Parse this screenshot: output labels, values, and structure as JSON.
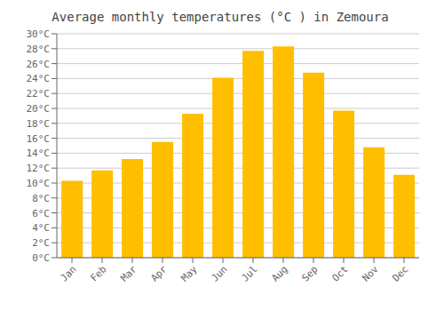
{
  "chart_data": {
    "type": "bar",
    "title": "Average monthly temperatures (°C ) in Zemoura",
    "categories": [
      "Jan",
      "Feb",
      "Mar",
      "Apr",
      "May",
      "Jun",
      "Jul",
      "Aug",
      "Sep",
      "Oct",
      "Nov",
      "Dec"
    ],
    "values": [
      10.3,
      11.7,
      13.2,
      15.5,
      19.3,
      24.1,
      27.7,
      28.3,
      24.8,
      19.7,
      14.8,
      11.1
    ],
    "color": "#FFBE00",
    "ylim": [
      0,
      30
    ],
    "yticks": [
      {
        "value": 0,
        "label": "0°C"
      },
      {
        "value": 2,
        "label": "2°C"
      },
      {
        "value": 4,
        "label": "4°C"
      },
      {
        "value": 6,
        "label": "6°C"
      },
      {
        "value": 8,
        "label": "8°C"
      },
      {
        "value": 10,
        "label": "10°C"
      },
      {
        "value": 12,
        "label": "12°C"
      },
      {
        "value": 14,
        "label": "14°C"
      },
      {
        "value": 16,
        "label": "16°C"
      },
      {
        "value": 18,
        "label": "18°C"
      },
      {
        "value": 20,
        "label": "20°C"
      },
      {
        "value": 22,
        "label": "22°C"
      },
      {
        "value": 24,
        "label": "24°C"
      },
      {
        "value": 26,
        "label": "26°C"
      },
      {
        "value": 28,
        "label": "28°C"
      },
      {
        "value": 30,
        "label": "30°C"
      }
    ],
    "grid": true
  }
}
